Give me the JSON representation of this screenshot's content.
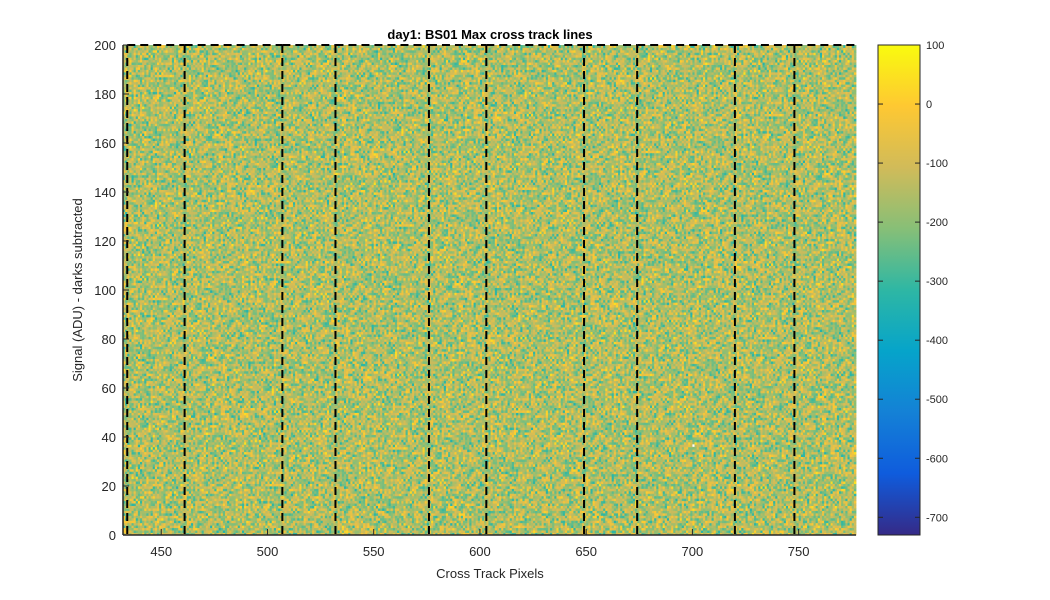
{
  "chart_data": {
    "type": "heatmap",
    "title": "day1: BS01  Max cross track lines",
    "xlabel": "Cross Track Pixels",
    "ylabel": "Signal (ADU) - darks subtracted",
    "xlim": [
      432,
      777
    ],
    "ylim": [
      0,
      200
    ],
    "x_ticks": [
      450,
      500,
      550,
      600,
      650,
      700,
      750
    ],
    "y_ticks": [
      0,
      20,
      40,
      60,
      80,
      100,
      120,
      140,
      160,
      180,
      200
    ],
    "colorbar": {
      "colormap": "parula",
      "clim": [
        -730,
        100
      ],
      "ticks": [
        100,
        0,
        -100,
        -200,
        -300,
        -400,
        -500,
        -600,
        -700
      ]
    },
    "noise_value_range": [
      -350,
      50
    ],
    "dashed_lines_x": [
      434,
      461,
      507,
      532,
      576,
      603,
      649,
      674,
      720,
      748
    ],
    "missing_pixel": {
      "x": 700,
      "y": 36
    },
    "grid": false
  }
}
